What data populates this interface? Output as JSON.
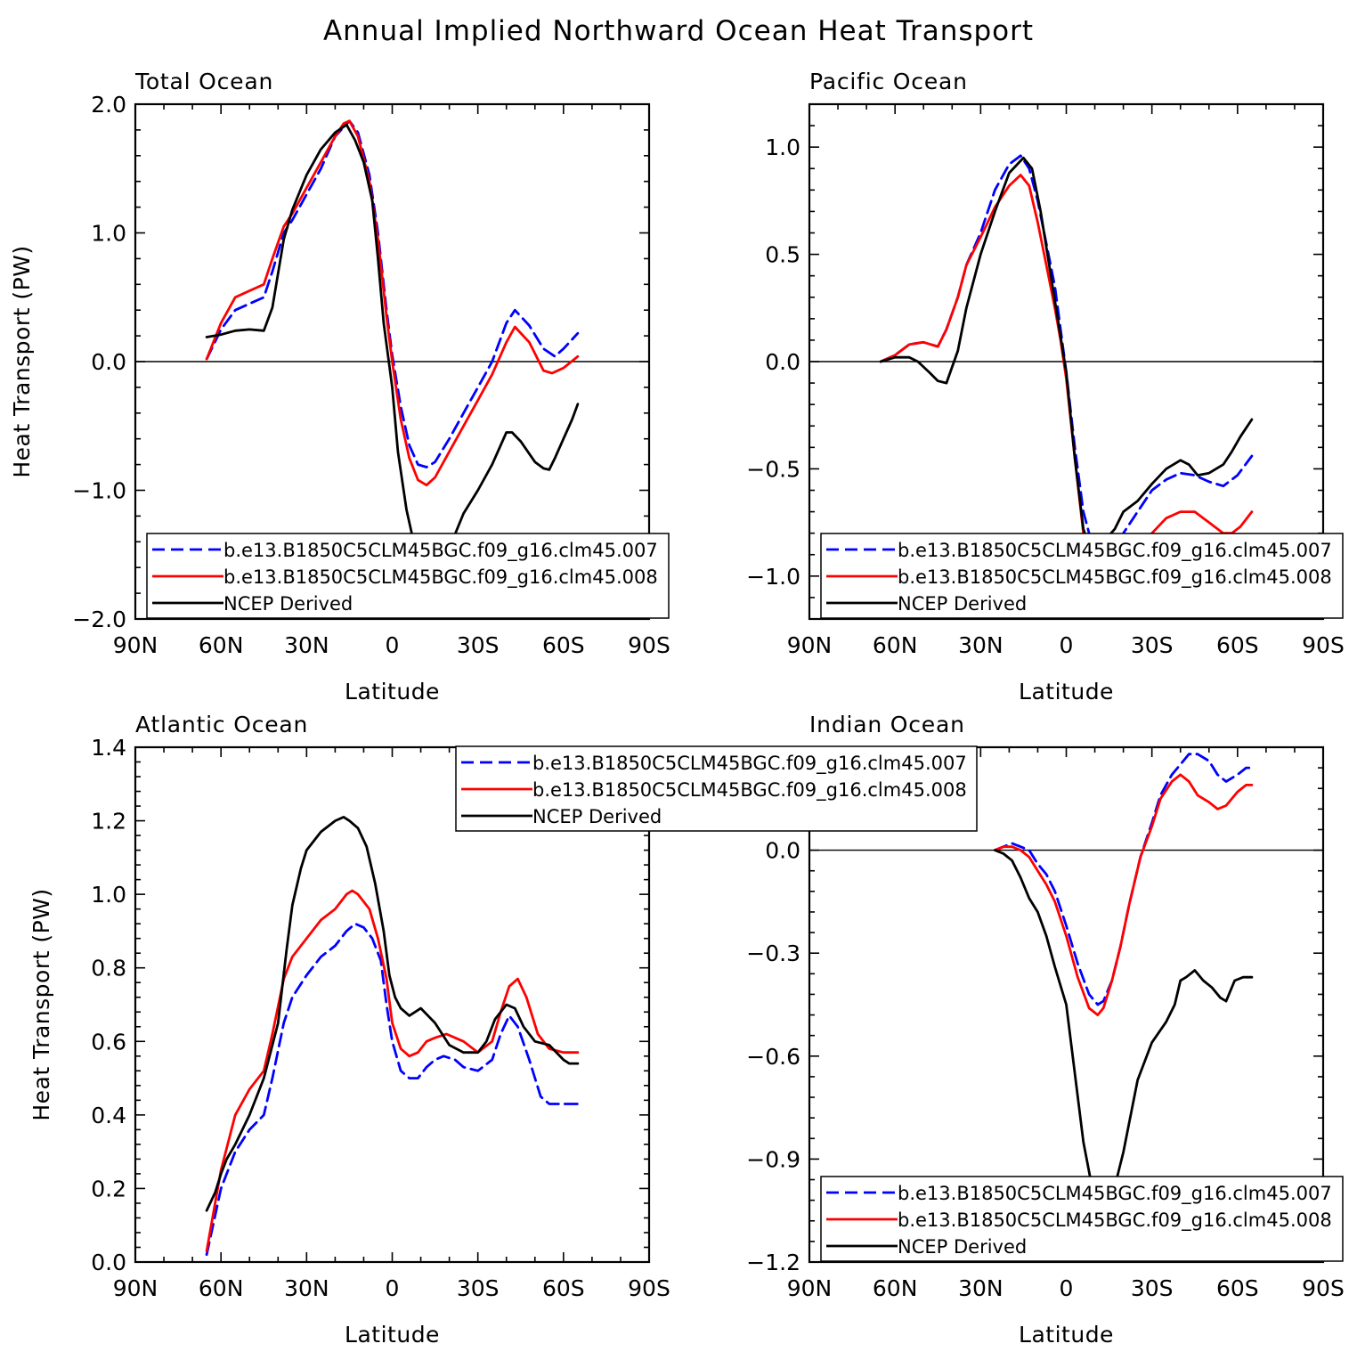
{
  "figure": {
    "title": "Annual Implied Northward Ocean Heat Transport"
  },
  "legend_entries": [
    {
      "label": "b.e13.B1850C5CLM45BGC.f09_g16.clm45.007",
      "color": "#0000ff",
      "dash": "dashed"
    },
    {
      "label": "b.e13.B1850C5CLM45BGC.f09_g16.clm45.008",
      "color": "#ff0000",
      "dash": "solid"
    },
    {
      "label": "NCEP Derived",
      "color": "#000000",
      "dash": "solid"
    }
  ],
  "chart_data": [
    {
      "id": "total",
      "type": "line",
      "title": "Total Ocean",
      "xlabel": "Latitude",
      "ylabel": "Heat Transport (PW)",
      "xlim": [
        90,
        -90
      ],
      "ylim": [
        -2.0,
        2.0
      ],
      "xticks": [
        90,
        60,
        30,
        0,
        -30,
        -60,
        -90
      ],
      "xtick_labels": [
        "90N",
        "60N",
        "30N",
        "0",
        "30S",
        "60S",
        "90S"
      ],
      "yticks": [
        -2.0,
        -1.0,
        0.0,
        1.0,
        2.0
      ],
      "ytick_labels": [
        "−2.0",
        "−1.0",
        "0.0",
        "1.0",
        "2.0"
      ],
      "legend_position": "bottom",
      "series": [
        {
          "name": "b.e13.B1850C5CLM45BGC.f09_g16.clm45.007",
          "color": "#0000ff",
          "dash": "dashed",
          "x": [
            65,
            60,
            55,
            50,
            45,
            42,
            38,
            35,
            30,
            25,
            20,
            15,
            12,
            8,
            5,
            2,
            0,
            -3,
            -6,
            -9,
            -12,
            -15,
            -20,
            -25,
            -30,
            -35,
            -40,
            -43,
            -48,
            -53,
            -57,
            -60,
            -65
          ],
          "y": [
            0.02,
            0.25,
            0.4,
            0.45,
            0.5,
            0.7,
            1.0,
            1.1,
            1.3,
            1.5,
            1.75,
            1.87,
            1.78,
            1.45,
            1.0,
            0.4,
            0.05,
            -0.35,
            -0.65,
            -0.8,
            -0.82,
            -0.78,
            -0.6,
            -0.4,
            -0.2,
            0.0,
            0.3,
            0.4,
            0.28,
            0.1,
            0.04,
            0.1,
            0.22
          ]
        },
        {
          "name": "b.e13.B1850C5CLM45BGC.f09_g16.clm45.008",
          "color": "#ff0000",
          "dash": "solid",
          "x": [
            65,
            60,
            55,
            50,
            45,
            42,
            38,
            35,
            30,
            25,
            20,
            17,
            15,
            12,
            8,
            5,
            2,
            0,
            -3,
            -6,
            -9,
            -12,
            -15,
            -20,
            -25,
            -30,
            -35,
            -40,
            -43,
            -48,
            -53,
            -56,
            -60,
            -65
          ],
          "y": [
            0.02,
            0.3,
            0.5,
            0.55,
            0.6,
            0.8,
            1.05,
            1.15,
            1.35,
            1.55,
            1.75,
            1.85,
            1.87,
            1.75,
            1.4,
            0.95,
            0.35,
            0.0,
            -0.45,
            -0.75,
            -0.92,
            -0.96,
            -0.9,
            -0.7,
            -0.5,
            -0.3,
            -0.1,
            0.15,
            0.27,
            0.15,
            -0.07,
            -0.09,
            -0.05,
            0.04
          ]
        },
        {
          "name": "NCEP Derived",
          "color": "#000000",
          "dash": "solid",
          "x": [
            65,
            60,
            55,
            50,
            45,
            42,
            38,
            35,
            30,
            25,
            20,
            16,
            13,
            10,
            7,
            5,
            3,
            0,
            -2,
            -5,
            -8,
            -10,
            -13,
            -16,
            -20,
            -25,
            -30,
            -35,
            -40,
            -42,
            -45,
            -50,
            -53,
            -55,
            -57,
            -60,
            -63,
            -65
          ],
          "y": [
            0.19,
            0.21,
            0.24,
            0.25,
            0.24,
            0.42,
            0.95,
            1.18,
            1.45,
            1.65,
            1.78,
            1.84,
            1.72,
            1.55,
            1.25,
            0.8,
            0.3,
            -0.2,
            -0.7,
            -1.15,
            -1.45,
            -1.65,
            -1.65,
            -1.6,
            -1.45,
            -1.18,
            -1.0,
            -0.8,
            -0.55,
            -0.55,
            -0.62,
            -0.78,
            -0.83,
            -0.84,
            -0.75,
            -0.6,
            -0.45,
            -0.33
          ]
        }
      ]
    },
    {
      "id": "pacific",
      "type": "line",
      "title": "Pacific Ocean",
      "xlabel": "Latitude",
      "ylabel": "",
      "xlim": [
        90,
        -90
      ],
      "ylim": [
        -1.2,
        1.2
      ],
      "xticks": [
        90,
        60,
        30,
        0,
        -30,
        -60,
        -90
      ],
      "xtick_labels": [
        "90N",
        "60N",
        "30N",
        "0",
        "30S",
        "60S",
        "90S"
      ],
      "yticks": [
        -1.0,
        -0.5,
        0.0,
        0.5,
        1.0
      ],
      "ytick_labels": [
        "−1.0",
        "−0.5",
        "0.0",
        "0.5",
        "1.0"
      ],
      "legend_position": "bottom",
      "series": [
        {
          "name": "b.e13.B1850C5CLM45BGC.f09_g16.clm45.007",
          "color": "#0000ff",
          "dash": "dashed",
          "x": [
            65,
            60,
            55,
            50,
            45,
            42,
            38,
            35,
            30,
            25,
            20,
            16,
            13,
            10,
            7,
            4,
            2,
            0,
            -3,
            -6,
            -9,
            -12,
            -15,
            -20,
            -25,
            -30,
            -35,
            -40,
            -45,
            -50,
            -55,
            -60,
            -65
          ],
          "y": [
            0.0,
            0.03,
            0.08,
            0.09,
            0.07,
            0.15,
            0.3,
            0.45,
            0.6,
            0.8,
            0.92,
            0.96,
            0.9,
            0.75,
            0.55,
            0.35,
            0.15,
            -0.05,
            -0.4,
            -0.7,
            -0.85,
            -0.9,
            -0.9,
            -0.8,
            -0.7,
            -0.6,
            -0.55,
            -0.52,
            -0.53,
            -0.56,
            -0.58,
            -0.53,
            -0.44
          ]
        },
        {
          "name": "b.e13.B1850C5CLM45BGC.f09_g16.clm45.008",
          "color": "#ff0000",
          "dash": "solid",
          "x": [
            65,
            60,
            55,
            50,
            45,
            42,
            38,
            35,
            30,
            25,
            20,
            16,
            13,
            10,
            7,
            4,
            2,
            0,
            -3,
            -6,
            -9,
            -12,
            -15,
            -20,
            -25,
            -30,
            -35,
            -40,
            -45,
            -50,
            -55,
            -58,
            -61,
            -65
          ],
          "y": [
            0.0,
            0.03,
            0.08,
            0.09,
            0.07,
            0.15,
            0.3,
            0.45,
            0.58,
            0.72,
            0.82,
            0.87,
            0.82,
            0.65,
            0.45,
            0.25,
            0.1,
            -0.08,
            -0.45,
            -0.8,
            -1.0,
            -1.05,
            -1.05,
            -0.98,
            -0.88,
            -0.8,
            -0.73,
            -0.7,
            -0.7,
            -0.75,
            -0.8,
            -0.8,
            -0.77,
            -0.7
          ]
        },
        {
          "name": "NCEP Derived",
          "color": "#000000",
          "dash": "solid",
          "x": [
            65,
            60,
            55,
            52,
            48,
            45,
            42,
            38,
            35,
            30,
            25,
            20,
            15,
            12,
            9,
            6,
            3,
            0,
            -3,
            -6,
            -9,
            -11,
            -13,
            -17,
            -20,
            -25,
            -30,
            -35,
            -40,
            -43,
            -46,
            -50,
            -55,
            -58,
            -61,
            -65
          ],
          "y": [
            0.0,
            0.02,
            0.02,
            0.0,
            -0.05,
            -0.09,
            -0.1,
            0.05,
            0.25,
            0.5,
            0.7,
            0.88,
            0.95,
            0.9,
            0.7,
            0.45,
            0.2,
            -0.05,
            -0.45,
            -0.78,
            -0.9,
            -0.88,
            -0.84,
            -0.78,
            -0.7,
            -0.65,
            -0.57,
            -0.5,
            -0.46,
            -0.48,
            -0.53,
            -0.52,
            -0.48,
            -0.42,
            -0.35,
            -0.27
          ]
        }
      ]
    },
    {
      "id": "atlantic",
      "type": "line",
      "title": "Atlantic Ocean",
      "xlabel": "Latitude",
      "ylabel": "Heat Transport (PW)",
      "xlim": [
        90,
        -90
      ],
      "ylim": [
        0.0,
        1.4
      ],
      "xticks": [
        90,
        60,
        30,
        0,
        -30,
        -60,
        -90
      ],
      "xtick_labels": [
        "90N",
        "60N",
        "30N",
        "0",
        "30S",
        "60S",
        "90S"
      ],
      "yticks": [
        0.0,
        0.2,
        0.4,
        0.6,
        0.8,
        1.0,
        1.2,
        1.4
      ],
      "ytick_labels": [
        "0.0",
        "0.2",
        "0.4",
        "0.6",
        "0.8",
        "1.0",
        "1.2",
        "1.4"
      ],
      "legend_position": "top",
      "series": [
        {
          "name": "b.e13.B1850C5CLM45BGC.f09_g16.clm45.007",
          "color": "#0000ff",
          "dash": "dashed",
          "x": [
            65,
            60,
            55,
            50,
            45,
            42,
            38,
            35,
            30,
            25,
            20,
            16,
            13,
            10,
            7,
            4,
            2,
            0,
            -3,
            -6,
            -9,
            -12,
            -15,
            -18,
            -22,
            -25,
            -30,
            -35,
            -38,
            -41,
            -44,
            -48,
            -52,
            -55,
            -60,
            -65
          ],
          "y": [
            0.02,
            0.2,
            0.3,
            0.36,
            0.4,
            0.5,
            0.65,
            0.72,
            0.78,
            0.83,
            0.86,
            0.9,
            0.92,
            0.91,
            0.88,
            0.82,
            0.7,
            0.6,
            0.52,
            0.5,
            0.5,
            0.53,
            0.55,
            0.56,
            0.55,
            0.53,
            0.52,
            0.55,
            0.62,
            0.67,
            0.64,
            0.55,
            0.45,
            0.43,
            0.43,
            0.43
          ]
        },
        {
          "name": "b.e13.B1850C5CLM45BGC.f09_g16.clm45.008",
          "color": "#ff0000",
          "dash": "solid",
          "x": [
            65,
            60,
            55,
            50,
            45,
            42,
            38,
            35,
            30,
            25,
            20,
            16,
            14,
            12,
            8,
            5,
            2,
            0,
            -3,
            -6,
            -9,
            -12,
            -15,
            -19,
            -22,
            -25,
            -30,
            -35,
            -38,
            -41,
            -44,
            -47,
            -51,
            -55,
            -60,
            -65
          ],
          "y": [
            0.03,
            0.25,
            0.4,
            0.47,
            0.52,
            0.62,
            0.77,
            0.83,
            0.88,
            0.93,
            0.96,
            1.0,
            1.01,
            1.0,
            0.96,
            0.88,
            0.77,
            0.65,
            0.58,
            0.56,
            0.57,
            0.6,
            0.61,
            0.62,
            0.61,
            0.6,
            0.57,
            0.6,
            0.68,
            0.75,
            0.77,
            0.72,
            0.62,
            0.58,
            0.57,
            0.57
          ]
        },
        {
          "name": "NCEP Derived",
          "color": "#000000",
          "dash": "solid",
          "x": [
            65,
            62,
            60,
            58,
            55,
            50,
            45,
            40,
            37,
            35,
            32,
            30,
            25,
            20,
            17,
            15,
            12,
            9,
            6,
            3,
            1,
            -1,
            -3,
            -6,
            -10,
            -15,
            -20,
            -25,
            -30,
            -33,
            -36,
            -40,
            -43,
            -46,
            -50,
            -55,
            -60,
            -62,
            -65
          ],
          "y": [
            0.14,
            0.19,
            0.24,
            0.28,
            0.32,
            0.4,
            0.5,
            0.65,
            0.85,
            0.97,
            1.07,
            1.12,
            1.17,
            1.2,
            1.21,
            1.2,
            1.18,
            1.13,
            1.03,
            0.9,
            0.78,
            0.72,
            0.69,
            0.67,
            0.69,
            0.65,
            0.59,
            0.57,
            0.57,
            0.6,
            0.66,
            0.7,
            0.69,
            0.64,
            0.6,
            0.59,
            0.55,
            0.54,
            0.54
          ]
        }
      ]
    },
    {
      "id": "indian",
      "type": "line",
      "title": "Indian Ocean",
      "xlabel": "Latitude",
      "ylabel": "",
      "xlim": [
        90,
        -90
      ],
      "ylim": [
        -1.2,
        0.3
      ],
      "xticks": [
        90,
        60,
        30,
        0,
        -30,
        -60,
        -90
      ],
      "xtick_labels": [
        "90N",
        "60N",
        "30N",
        "0",
        "30S",
        "60S",
        "90S"
      ],
      "yticks": [
        -1.2,
        -0.9,
        -0.6,
        -0.3,
        0.0
      ],
      "ytick_labels": [
        "−1.2",
        "−0.9",
        "−0.6",
        "−0.3",
        "0.0"
      ],
      "legend_position": "bottom",
      "series": [
        {
          "name": "b.e13.B1850C5CLM45BGC.f09_g16.clm45.007",
          "color": "#0000ff",
          "dash": "dashed",
          "x": [
            25,
            22,
            19,
            16,
            13,
            10,
            7,
            4,
            0,
            -4,
            -8,
            -11,
            -13,
            -16,
            -19,
            -22,
            -26,
            -30,
            -33,
            -37,
            -40,
            -43,
            -46,
            -50,
            -53,
            -56,
            -60,
            -63,
            -65
          ],
          "y": [
            0.0,
            0.01,
            0.02,
            0.01,
            0.0,
            -0.04,
            -0.07,
            -0.12,
            -0.22,
            -0.33,
            -0.42,
            -0.45,
            -0.44,
            -0.38,
            -0.28,
            -0.16,
            -0.02,
            0.08,
            0.16,
            0.22,
            0.25,
            0.28,
            0.28,
            0.26,
            0.22,
            0.2,
            0.22,
            0.24,
            0.24
          ]
        },
        {
          "name": "b.e13.B1850C5CLM45BGC.f09_g16.clm45.008",
          "color": "#ff0000",
          "dash": "solid",
          "x": [
            25,
            22,
            19,
            16,
            13,
            10,
            7,
            4,
            0,
            -4,
            -8,
            -11,
            -13,
            -16,
            -19,
            -22,
            -26,
            -30,
            -33,
            -37,
            -40,
            -43,
            -46,
            -50,
            -53,
            -56,
            -60,
            -63,
            -65
          ],
          "y": [
            0.0,
            0.01,
            0.01,
            0.0,
            -0.02,
            -0.06,
            -0.1,
            -0.15,
            -0.25,
            -0.37,
            -0.46,
            -0.48,
            -0.46,
            -0.38,
            -0.28,
            -0.16,
            -0.02,
            0.07,
            0.15,
            0.2,
            0.22,
            0.2,
            0.16,
            0.14,
            0.12,
            0.13,
            0.17,
            0.19,
            0.19
          ]
        },
        {
          "name": "NCEP Derived",
          "color": "#000000",
          "dash": "solid",
          "x": [
            25,
            22,
            19,
            16,
            13,
            10,
            7,
            4,
            0,
            -3,
            -6,
            -9,
            -11,
            -12,
            -14,
            -17,
            -20,
            -25,
            -30,
            -35,
            -38,
            -40,
            -42,
            -45,
            -48,
            -51,
            -54,
            -56,
            -59,
            -62,
            -65
          ],
          "y": [
            0.0,
            -0.01,
            -0.03,
            -0.08,
            -0.14,
            -0.18,
            -0.25,
            -0.34,
            -0.45,
            -0.65,
            -0.85,
            -0.98,
            -1.03,
            -1.05,
            -1.04,
            -0.98,
            -0.88,
            -0.67,
            -0.56,
            -0.5,
            -0.45,
            -0.38,
            -0.37,
            -0.35,
            -0.38,
            -0.4,
            -0.43,
            -0.44,
            -0.38,
            -0.37,
            -0.37
          ]
        }
      ]
    }
  ]
}
